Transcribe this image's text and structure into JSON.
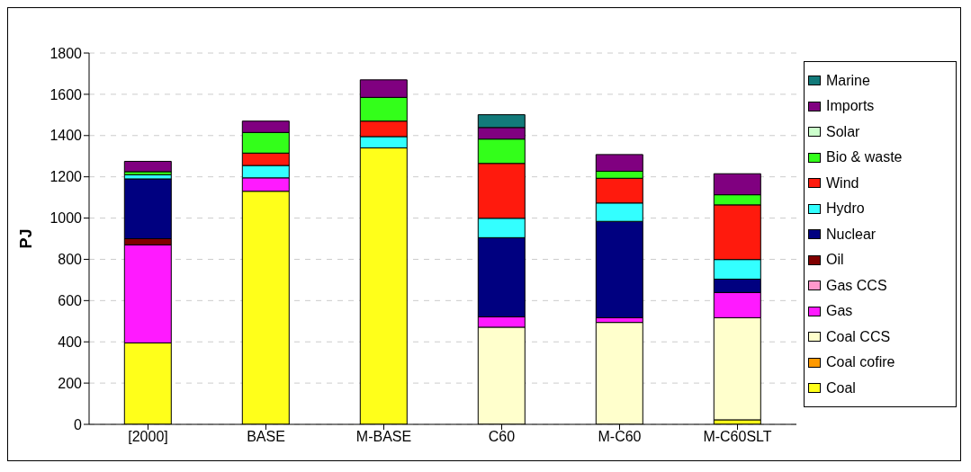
{
  "chart_data": {
    "type": "bar",
    "stacked": true,
    "ylabel": "PJ",
    "categories": [
      "[2000]",
      "BASE",
      "M-BASE",
      "C60",
      "M-C60",
      "M-C60SLT"
    ],
    "ylim": [
      0,
      1800
    ],
    "yticks": [
      0,
      200,
      400,
      600,
      800,
      1000,
      1200,
      1400,
      1600,
      1800
    ],
    "grid": "y",
    "legend": "right",
    "series": [
      {
        "name": "Coal",
        "color": "#ffff1a",
        "values": [
          395,
          1130,
          1340,
          0,
          0,
          22
        ]
      },
      {
        "name": "Coal cofire",
        "color": "#ff9900",
        "values": [
          0,
          0,
          0,
          0,
          0,
          0
        ]
      },
      {
        "name": "Coal CCS",
        "color": "#ffffcc",
        "values": [
          0,
          0,
          0,
          471,
          494,
          495
        ]
      },
      {
        "name": "Gas",
        "color": "#ff1aff",
        "values": [
          475,
          65,
          0,
          50,
          23,
          122
        ]
      },
      {
        "name": "Gas CCS",
        "color": "#ff99cc",
        "values": [
          0,
          0,
          0,
          0,
          0,
          0
        ]
      },
      {
        "name": "Oil",
        "color": "#800000",
        "values": [
          30,
          0,
          0,
          0,
          0,
          0
        ]
      },
      {
        "name": "Nuclear",
        "color": "#000080",
        "values": [
          290,
          0,
          0,
          384,
          467,
          65
        ]
      },
      {
        "name": "Hydro",
        "color": "#33ffff",
        "values": [
          20,
          60,
          55,
          94,
          89,
          95
        ]
      },
      {
        "name": "Wind",
        "color": "#ff1a0d",
        "values": [
          null,
          60,
          75,
          266,
          120,
          265
        ]
      },
      {
        "name": "Bio & waste",
        "color": "#33ff1a",
        "values": [
          15,
          100,
          115,
          118,
          34,
          49
        ]
      },
      {
        "name": "Solar",
        "color": "#ccffcc",
        "values": [
          0,
          0,
          0,
          0,
          0,
          0
        ]
      },
      {
        "name": "Imports",
        "color": "#800080",
        "values": [
          50,
          55,
          85,
          56,
          81,
          102
        ]
      },
      {
        "name": "Marine",
        "color": "#127a7a",
        "values": [
          0,
          0,
          0,
          62,
          0,
          0
        ]
      }
    ]
  }
}
